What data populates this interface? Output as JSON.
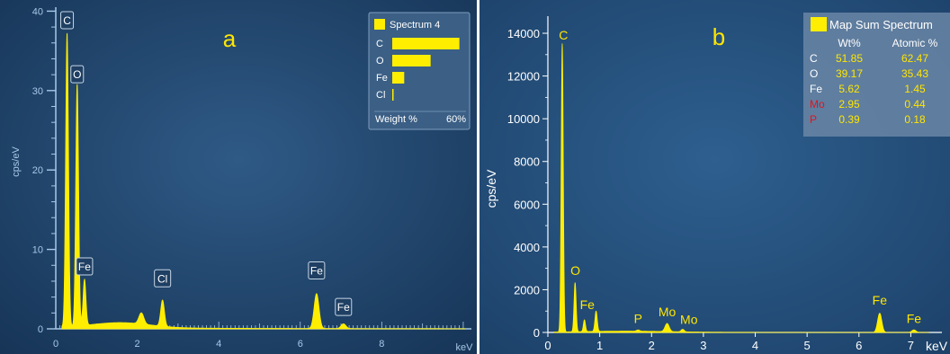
{
  "colors": {
    "bg_a_inner": "#2f5a86",
    "bg_a_outer": "#163456",
    "bg_b_inner": "#2e5f8f",
    "bg_b_outer": "#1b3f66",
    "spectrum": "#ffee00",
    "label_yellow": "#ffe600",
    "label_red": "#e0141e",
    "axis_a": "#a8c8e8"
  },
  "chart_data": [
    {
      "type": "area",
      "panel_label": "a",
      "xlabel": "keV",
      "ylabel": "cps/eV",
      "xlim": [
        0,
        10.2
      ],
      "ylim": [
        0,
        40.5
      ],
      "xticks": [
        "0",
        "2",
        "4",
        "6",
        "8"
      ],
      "yticks": [
        "0",
        "10",
        "20",
        "30",
        "40"
      ],
      "peaks": [
        {
          "x": 0.277,
          "y": 37.0,
          "w": 0.035
        },
        {
          "x": 0.525,
          "y": 30.5,
          "w": 0.035
        },
        {
          "x": 0.705,
          "y": 5.8,
          "w": 0.035
        },
        {
          "x": 2.1,
          "y": 1.4,
          "w": 0.06
        },
        {
          "x": 2.62,
          "y": 3.3,
          "w": 0.045
        },
        {
          "x": 6.4,
          "y": 4.4,
          "w": 0.06
        },
        {
          "x": 7.06,
          "y": 0.6,
          "w": 0.06
        }
      ],
      "peak_labels": [
        {
          "text": "C",
          "x": 0.277,
          "y": 38.8
        },
        {
          "text": "O",
          "x": 0.525,
          "y": 32.0
        },
        {
          "text": "Fe",
          "x": 0.705,
          "y": 7.8
        },
        {
          "text": "Cl",
          "x": 2.62,
          "y": 6.3
        },
        {
          "text": "Fe",
          "x": 6.4,
          "y": 7.3
        },
        {
          "text": "Fe",
          "x": 7.06,
          "y": 2.7
        }
      ],
      "legend": {
        "title": "Spectrum 4",
        "bars": [
          {
            "label": "C",
            "value": 56
          },
          {
            "label": "O",
            "value": 32
          },
          {
            "label": "Fe",
            "value": 10
          },
          {
            "label": "Cl",
            "value": 0.8
          }
        ],
        "footer_left": "Weight %",
        "footer_right": "60%",
        "max": 60
      }
    },
    {
      "type": "area",
      "panel_label": "b",
      "xlabel": "keV",
      "ylabel": "cps/eV",
      "xlim": [
        0,
        7.6
      ],
      "ylim": [
        0,
        14800
      ],
      "xticks": [
        "0",
        "1",
        "2",
        "3",
        "4",
        "5",
        "6",
        "7"
      ],
      "yticks": [
        "0",
        "2000",
        "4000",
        "6000",
        "8000",
        "10000",
        "12000",
        "14000"
      ],
      "peaks": [
        {
          "x": 0.277,
          "y": 13500,
          "w": 0.02
        },
        {
          "x": 0.525,
          "y": 2300,
          "w": 0.02
        },
        {
          "x": 0.705,
          "y": 550,
          "w": 0.02
        },
        {
          "x": 0.93,
          "y": 950,
          "w": 0.022
        },
        {
          "x": 1.74,
          "y": 60,
          "w": 0.03
        },
        {
          "x": 2.3,
          "y": 380,
          "w": 0.04
        },
        {
          "x": 2.6,
          "y": 120,
          "w": 0.03
        },
        {
          "x": 6.4,
          "y": 900,
          "w": 0.04
        },
        {
          "x": 7.06,
          "y": 120,
          "w": 0.04
        }
      ],
      "peak_labels": [
        {
          "text": "C",
          "x": 0.3,
          "y": 13700
        },
        {
          "text": "O",
          "x": 0.53,
          "y": 2700
        },
        {
          "text": "Fe",
          "x": 0.76,
          "y": 1100
        },
        {
          "text": "P",
          "x": 1.74,
          "y": 450
        },
        {
          "text": "Mo",
          "x": 2.3,
          "y": 750
        },
        {
          "text": "Mo",
          "x": 2.72,
          "y": 400
        },
        {
          "text": "Fe",
          "x": 6.4,
          "y": 1300
        },
        {
          "text": "Fe",
          "x": 7.06,
          "y": 450
        }
      ],
      "legend": {
        "title": "Map Sum Spectrum",
        "col_wt": "Wt%",
        "col_at": "Atomic %",
        "rows": [
          {
            "el": "C",
            "wt": "51.85",
            "at": "62.47",
            "el_color": "#ffffff"
          },
          {
            "el": "O",
            "wt": "39.17",
            "at": "35.43",
            "el_color": "#ffffff"
          },
          {
            "el": "Fe",
            "wt": "5.62",
            "at": "1.45",
            "el_color": "#ffffff"
          },
          {
            "el": "Mo",
            "wt": "2.95",
            "at": "0.44",
            "el_color": "#e0141e"
          },
          {
            "el": "P",
            "wt": "0.39",
            "at": "0.18",
            "el_color": "#e0141e"
          }
        ]
      }
    }
  ]
}
